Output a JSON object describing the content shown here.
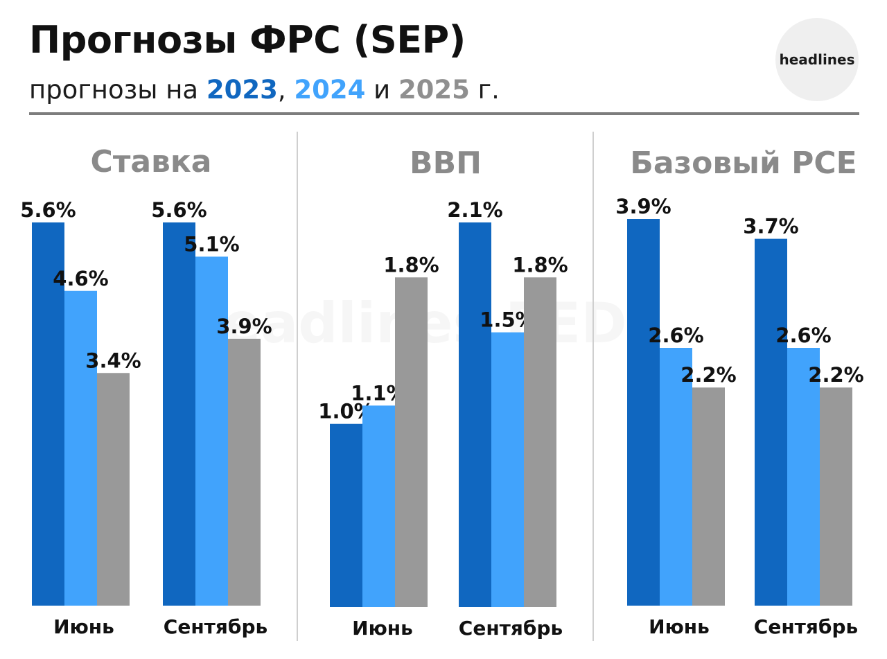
{
  "header": {
    "title": "Прогнозы ФРС (SEP)",
    "subtitle_prefix": "прогнозы на ",
    "year_1": "2023",
    "sep_1": ", ",
    "year_2": "2024",
    "sep_2": " и ",
    "year_3": "2025",
    "subtitle_suffix": " г.",
    "logo_text": "headlines"
  },
  "colors": {
    "2023": "#1067c0",
    "2024": "#41a3fc",
    "2025": "#999999"
  },
  "watermark": "headlines FED",
  "chart_data": [
    {
      "type": "bar",
      "title": "Ставка",
      "categories": [
        "Июнь",
        "Сентябрь"
      ],
      "series": [
        {
          "name": "2023",
          "values": [
            5.6,
            5.6
          ],
          "labels": [
            "5.6%",
            "5.6%"
          ]
        },
        {
          "name": "2024",
          "values": [
            4.6,
            5.1
          ],
          "labels": [
            "4.6%",
            "5.1%"
          ]
        },
        {
          "name": "2025",
          "values": [
            3.4,
            3.9
          ],
          "labels": [
            "3.4%",
            "3.9%"
          ]
        }
      ],
      "ylim": [
        0,
        5.6
      ]
    },
    {
      "type": "bar",
      "title": "ВВП",
      "categories": [
        "Июнь",
        "Сентябрь"
      ],
      "series": [
        {
          "name": "2023",
          "values": [
            1.0,
            2.1
          ],
          "labels": [
            "1.0%",
            "2.1%"
          ]
        },
        {
          "name": "2024",
          "values": [
            1.1,
            1.5
          ],
          "labels": [
            "1.1%",
            "1.5%"
          ]
        },
        {
          "name": "2025",
          "values": [
            1.8,
            1.8
          ],
          "labels": [
            "1.8%",
            "1.8%"
          ]
        }
      ],
      "ylim": [
        0,
        2.1
      ]
    },
    {
      "type": "bar",
      "title": "Базовый PCE",
      "categories": [
        "Июнь",
        "Сентябрь"
      ],
      "series": [
        {
          "name": "2023",
          "values": [
            3.9,
            3.7
          ],
          "labels": [
            "3.9%",
            "3.7%"
          ]
        },
        {
          "name": "2024",
          "values": [
            2.6,
            2.6
          ],
          "labels": [
            "2.6%",
            "2.6%"
          ]
        },
        {
          "name": "2025",
          "values": [
            2.2,
            2.2
          ],
          "labels": [
            "2.2%",
            "2.2%"
          ]
        }
      ],
      "ylim": [
        0,
        3.9
      ]
    }
  ]
}
